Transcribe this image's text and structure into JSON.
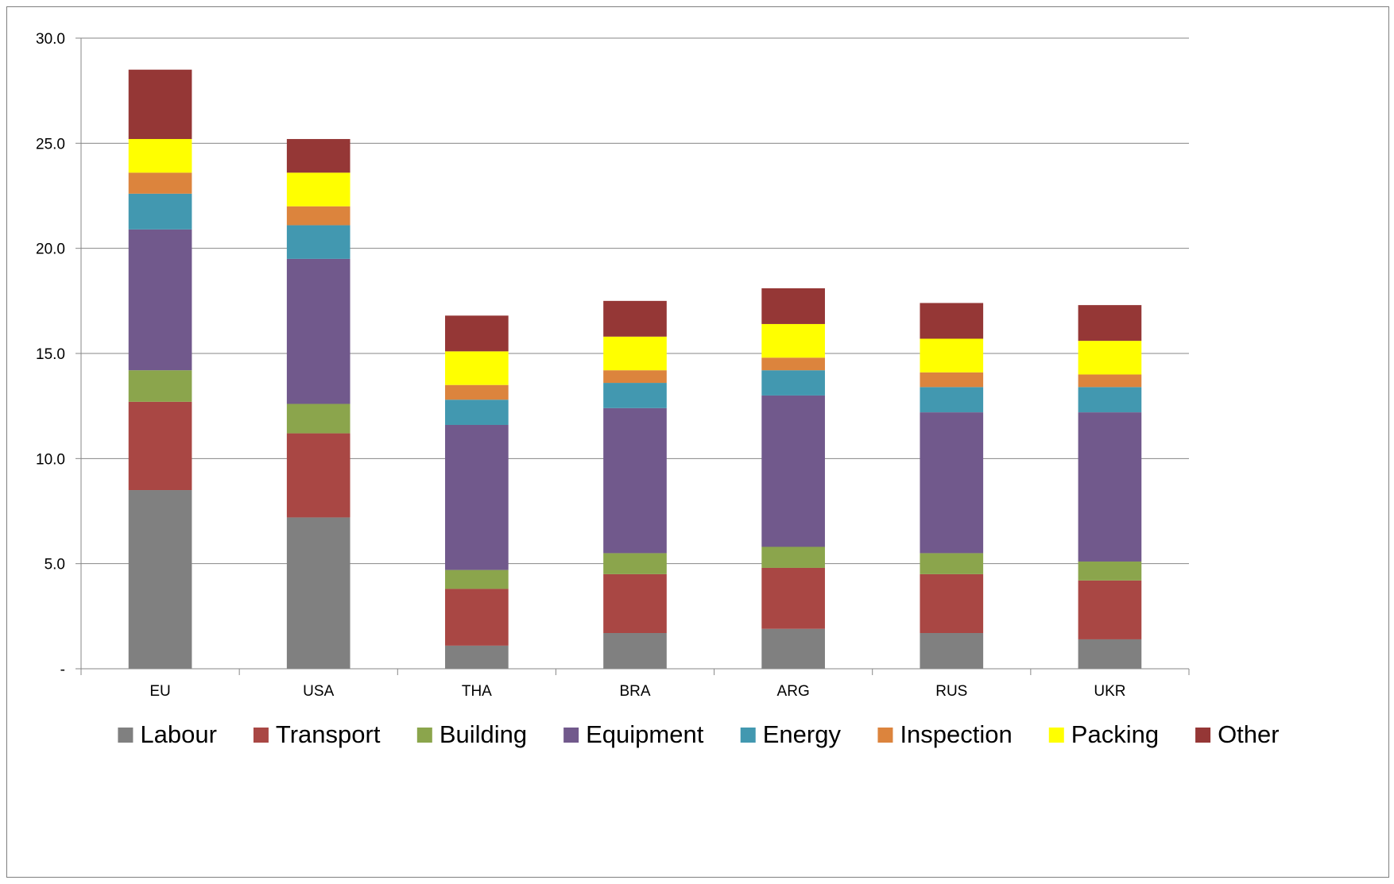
{
  "chart_data": {
    "type": "bar",
    "stacked": true,
    "title": "",
    "xlabel": "",
    "ylabel": "",
    "ylim": [
      0,
      30
    ],
    "yticks": [
      0,
      5,
      10,
      15,
      20,
      25,
      30
    ],
    "ytick_labels": [
      "-",
      "5.0",
      "10.0",
      "15.0",
      "20.0",
      "25.0",
      "30.0"
    ],
    "grid": true,
    "legend_position": "bottom",
    "categories": [
      "EU",
      "USA",
      "THA",
      "BRA",
      "ARG",
      "RUS",
      "UKR"
    ],
    "series": [
      {
        "name": "Labour",
        "color": "#808080",
        "values": [
          8.5,
          7.2,
          1.1,
          1.7,
          1.9,
          1.7,
          1.4
        ]
      },
      {
        "name": "Transport",
        "color": "#a94744",
        "values": [
          4.2,
          4.0,
          2.7,
          2.8,
          2.9,
          2.8,
          2.8
        ]
      },
      {
        "name": "Building",
        "color": "#8ba54c",
        "values": [
          1.5,
          1.4,
          0.9,
          1.0,
          1.0,
          1.0,
          0.9
        ]
      },
      {
        "name": "Equipment",
        "color": "#71598c",
        "values": [
          6.7,
          6.9,
          6.9,
          6.9,
          7.2,
          6.7,
          7.1
        ]
      },
      {
        "name": "Energy",
        "color": "#4298b0",
        "values": [
          1.7,
          1.6,
          1.2,
          1.2,
          1.2,
          1.2,
          1.2
        ]
      },
      {
        "name": "Inspection",
        "color": "#dc843d",
        "values": [
          1.0,
          0.9,
          0.7,
          0.6,
          0.6,
          0.7,
          0.6
        ]
      },
      {
        "name": "Packing",
        "color": "#ffff00",
        "values": [
          1.6,
          1.6,
          1.6,
          1.6,
          1.6,
          1.6,
          1.6
        ]
      },
      {
        "name": "Other",
        "color": "#953736",
        "values": [
          3.3,
          1.6,
          1.7,
          1.7,
          1.7,
          1.7,
          1.7
        ]
      }
    ]
  }
}
